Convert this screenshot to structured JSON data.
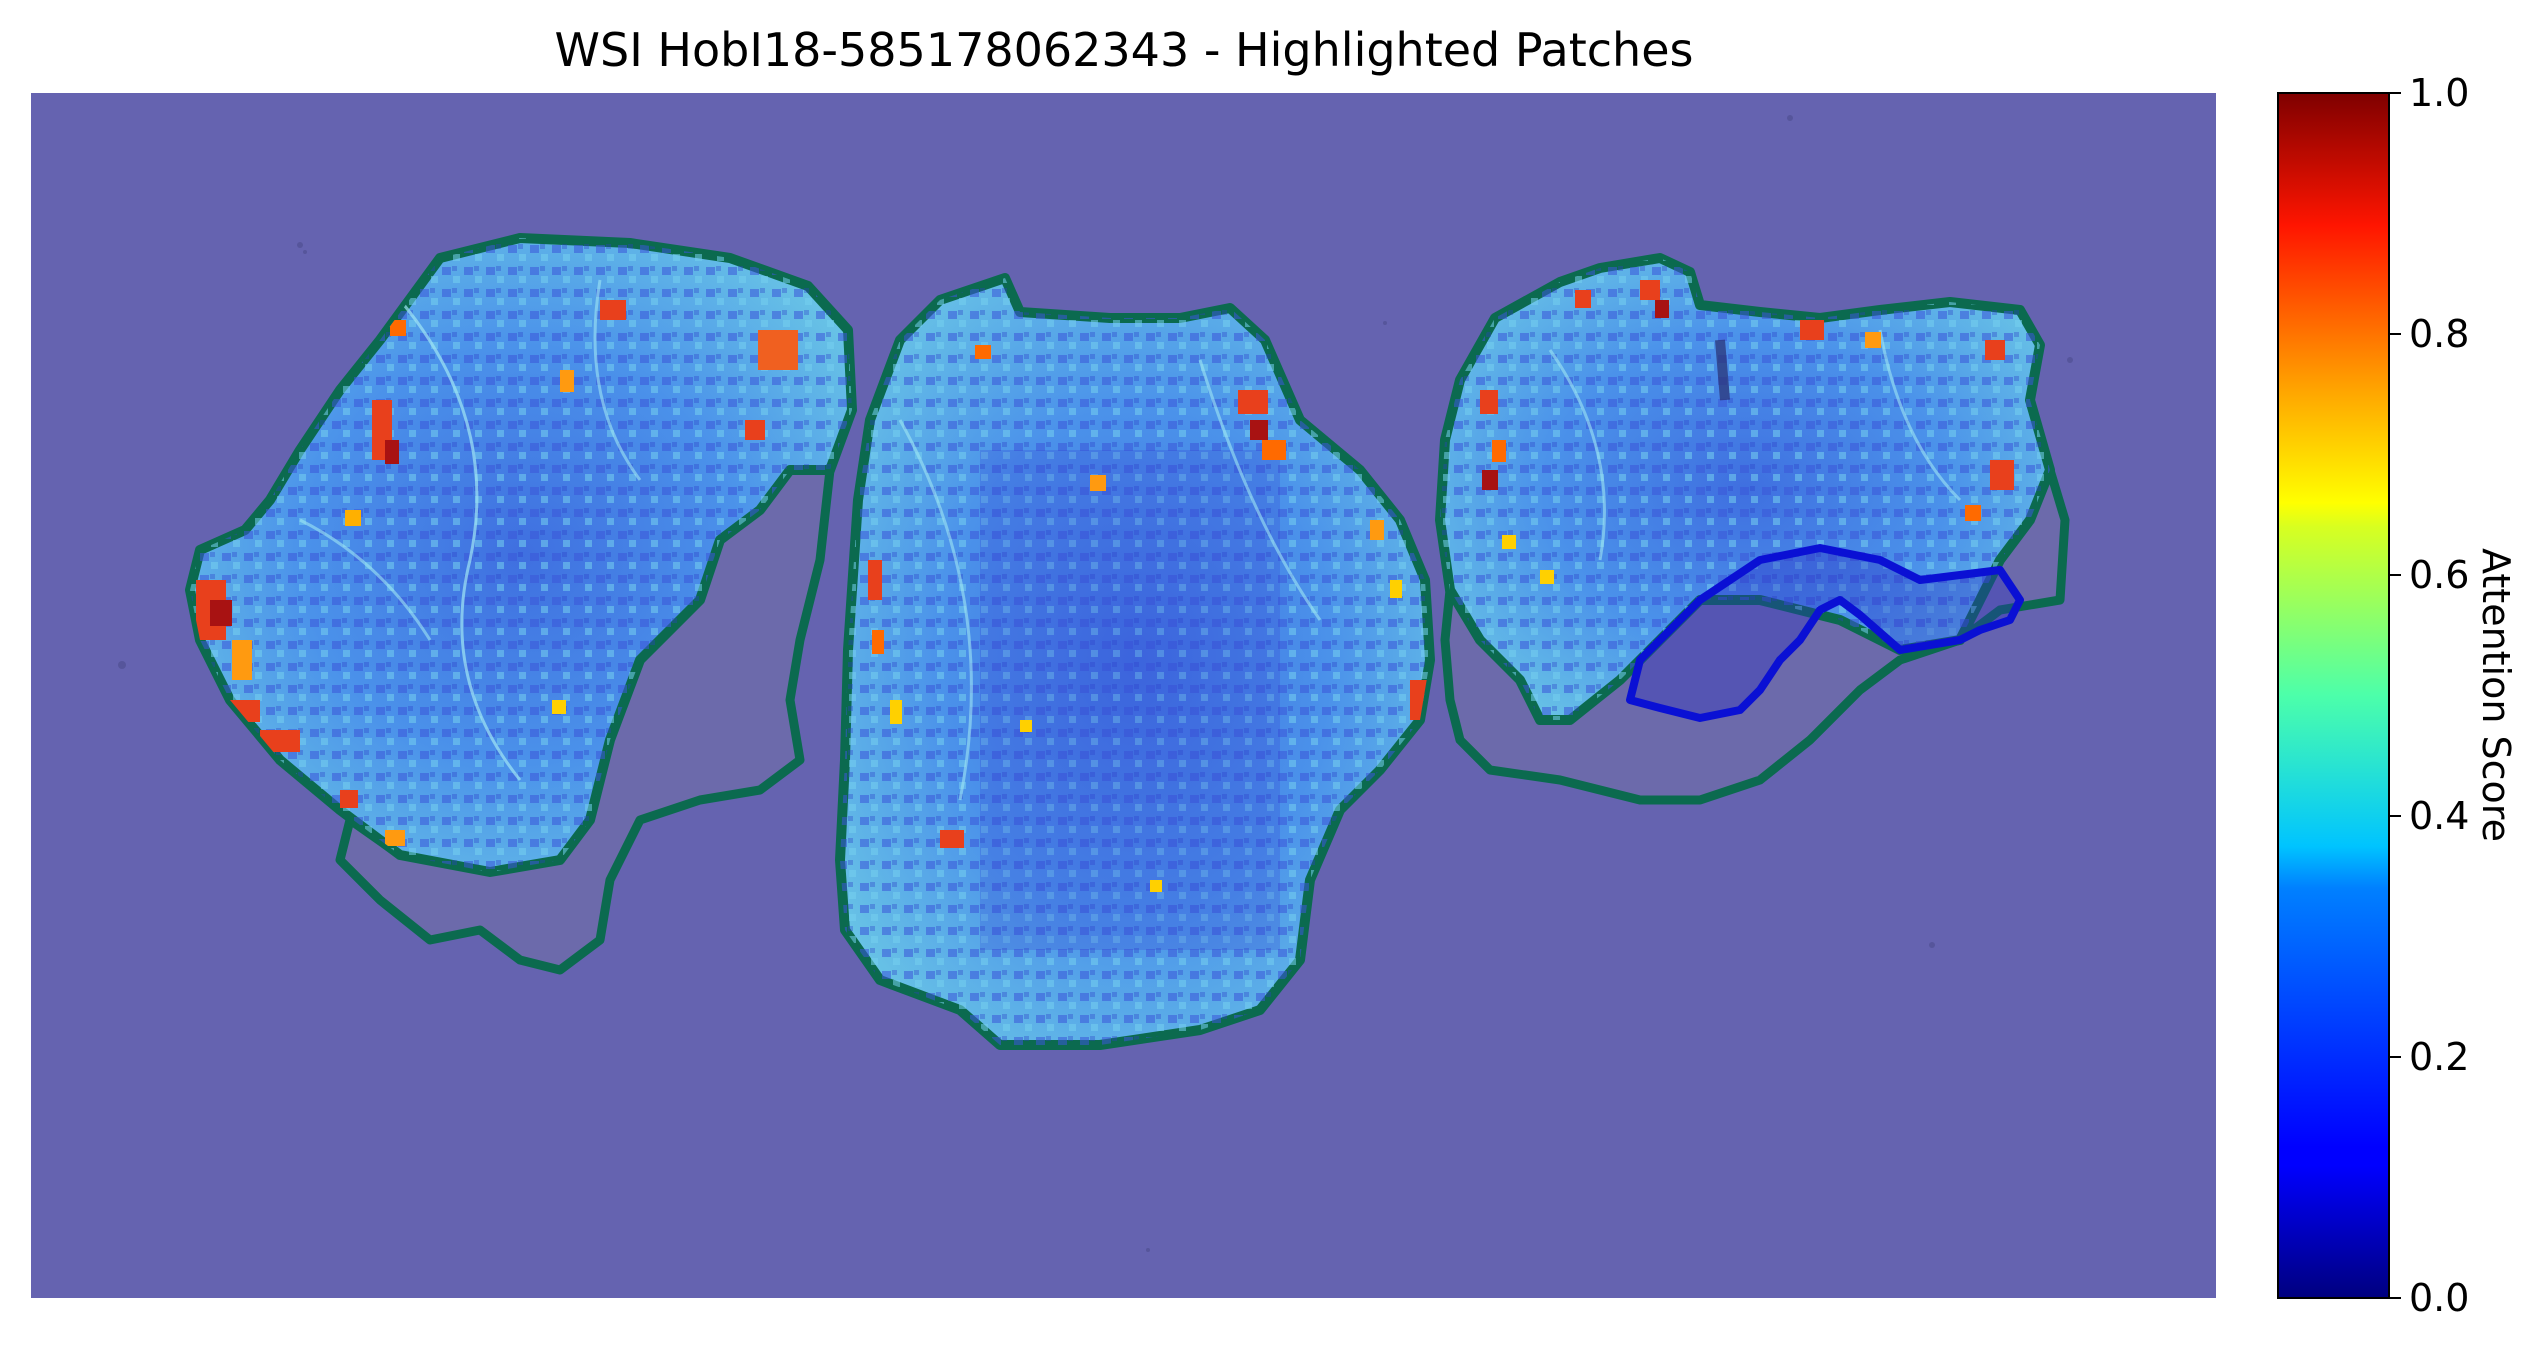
{
  "figure": {
    "title": "WSI HobI18-585178062343 - Highlighted Patches",
    "background_color": "#6563b0",
    "tissue_outline_color": "#0b6a4f",
    "low_region_outline_color": "#0a10d4",
    "colormap": "jet",
    "regions": [
      {
        "name": "left-tissue-section"
      },
      {
        "name": "middle-tissue-section"
      },
      {
        "name": "right-tissue-section"
      }
    ]
  },
  "colorbar": {
    "label": "Attention Score",
    "range": [
      0.0,
      1.0
    ],
    "ticks": [
      "0.0",
      "0.2",
      "0.4",
      "0.6",
      "0.8",
      "1.0"
    ],
    "tick_values": [
      0.0,
      0.2,
      0.4,
      0.6,
      0.8,
      1.0
    ]
  }
}
